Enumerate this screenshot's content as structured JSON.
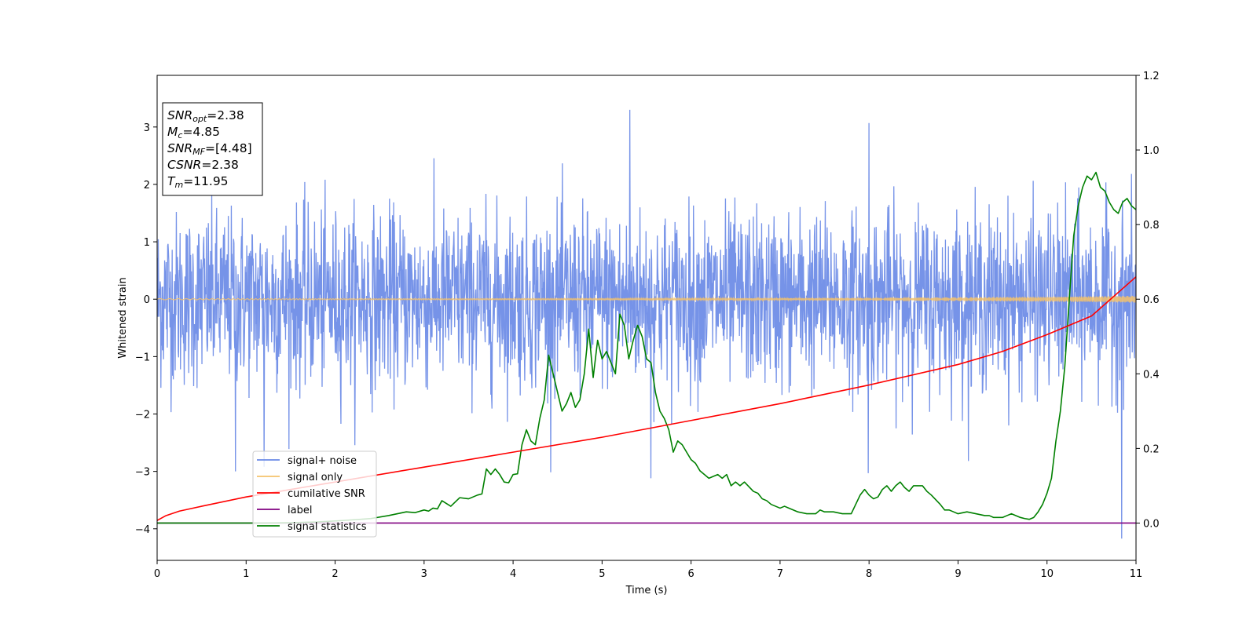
{
  "chart_data": {
    "type": "line",
    "title": "",
    "xlabel": "Time (s)",
    "ylabel": "Whitened strain",
    "y2label": "",
    "xlim": [
      0,
      11
    ],
    "ylim": [
      -4.55,
      3.9
    ],
    "y2lim": [
      -0.1,
      1.2
    ],
    "x_ticks": [
      "0",
      "1",
      "2",
      "3",
      "4",
      "5",
      "6",
      "7",
      "8",
      "9",
      "10",
      "11"
    ],
    "y_ticks": [
      {
        "value": 3,
        "label": "3"
      },
      {
        "value": 2,
        "label": "2"
      },
      {
        "value": 1,
        "label": "1"
      },
      {
        "value": 0,
        "label": "0"
      },
      {
        "value": -1,
        "label": "−1"
      },
      {
        "value": -2,
        "label": "−2"
      },
      {
        "value": -3,
        "label": "−3"
      },
      {
        "value": -4,
        "label": "−4"
      }
    ],
    "y2_ticks": [
      {
        "value": 1.2,
        "label": "1.2"
      },
      {
        "value": 1.0,
        "label": "1.0"
      },
      {
        "value": 0.8,
        "label": "0.8"
      },
      {
        "value": 0.6,
        "label": "0.6"
      },
      {
        "value": 0.4,
        "label": "0.4"
      },
      {
        "value": 0.2,
        "label": "0.2"
      },
      {
        "value": 0.0,
        "label": "0.0"
      }
    ],
    "grid": false,
    "legend_position": "lower-left",
    "series": [
      {
        "name": "signal+ noise",
        "axis": "left",
        "color": "#6a8ae6",
        "style": "noise band",
        "mean": 0,
        "std": 0.75,
        "x_range": [
          0,
          11
        ],
        "peaks": [
          [
            5.31,
            3.3
          ],
          [
            8.0,
            3.07
          ],
          [
            1.2,
            -2.92
          ],
          [
            10.84,
            -4.17
          ],
          [
            7.99,
            -3.03
          ],
          [
            5.55,
            -3.12
          ],
          [
            0.88,
            -3.0
          ]
        ]
      },
      {
        "name": "signal only",
        "axis": "left",
        "color": "#f5c26b",
        "style": "chirp",
        "x_range": [
          0,
          11
        ],
        "amplitude_start": 0.01,
        "amplitude_end": 0.06
      },
      {
        "name": "cumilative SNR",
        "axis": "right",
        "color": "#ff0000",
        "x": [
          0,
          0.1,
          0.25,
          0.5,
          1,
          1.5,
          2,
          3,
          4,
          5,
          6,
          7,
          8,
          9,
          9.5,
          10,
          10.5,
          11
        ],
        "values": [
          0.007,
          0.02,
          0.032,
          0.045,
          0.07,
          0.09,
          0.11,
          0.15,
          0.19,
          0.23,
          0.275,
          0.32,
          0.37,
          0.425,
          0.46,
          0.505,
          0.555,
          0.66
        ]
      },
      {
        "name": "label",
        "axis": "right",
        "color": "#800080",
        "x": [
          0,
          11
        ],
        "values": [
          0,
          0
        ]
      },
      {
        "name": "signal statistics",
        "axis": "right",
        "color": "#008000",
        "x": [
          0,
          0.3,
          0.6,
          0.9,
          1.2,
          1.5,
          1.8,
          2.1,
          2.4,
          2.6,
          2.7,
          2.8,
          2.9,
          3.0,
          3.05,
          3.1,
          3.15,
          3.2,
          3.3,
          3.4,
          3.5,
          3.6,
          3.65,
          3.7,
          3.75,
          3.8,
          3.85,
          3.9,
          3.95,
          4.0,
          4.05,
          4.1,
          4.15,
          4.2,
          4.25,
          4.3,
          4.35,
          4.4,
          4.45,
          4.5,
          4.55,
          4.6,
          4.65,
          4.7,
          4.75,
          4.8,
          4.85,
          4.9,
          4.95,
          5.0,
          5.05,
          5.1,
          5.15,
          5.2,
          5.25,
          5.3,
          5.35,
          5.4,
          5.45,
          5.5,
          5.55,
          5.6,
          5.65,
          5.7,
          5.75,
          5.8,
          5.85,
          5.9,
          5.95,
          6.0,
          6.05,
          6.1,
          6.15,
          6.2,
          6.3,
          6.35,
          6.4,
          6.45,
          6.5,
          6.55,
          6.6,
          6.7,
          6.75,
          6.8,
          6.85,
          6.9,
          6.95,
          7.0,
          7.05,
          7.1,
          7.2,
          7.3,
          7.4,
          7.45,
          7.5,
          7.6,
          7.7,
          7.8,
          7.85,
          7.9,
          7.95,
          8.0,
          8.05,
          8.1,
          8.15,
          8.2,
          8.25,
          8.3,
          8.35,
          8.4,
          8.45,
          8.5,
          8.55,
          8.6,
          8.65,
          8.7,
          8.8,
          8.85,
          8.9,
          8.95,
          9.0,
          9.1,
          9.2,
          9.3,
          9.35,
          9.4,
          9.45,
          9.5,
          9.55,
          9.6,
          9.65,
          9.7,
          9.75,
          9.8,
          9.85,
          9.9,
          9.95,
          10.0,
          10.05,
          10.1,
          10.15,
          10.2,
          10.25,
          10.3,
          10.35,
          10.4,
          10.45,
          10.5,
          10.55,
          10.6,
          10.65,
          10.7,
          10.75,
          10.8,
          10.85,
          10.9,
          10.95,
          11.0
        ],
        "values": [
          0.0,
          0.0,
          0.0,
          0.0,
          0.0,
          0.001,
          0.003,
          0.007,
          0.012,
          0.02,
          0.025,
          0.03,
          0.028,
          0.035,
          0.032,
          0.04,
          0.038,
          0.06,
          0.045,
          0.068,
          0.065,
          0.075,
          0.078,
          0.145,
          0.13,
          0.145,
          0.13,
          0.11,
          0.108,
          0.13,
          0.132,
          0.21,
          0.25,
          0.22,
          0.21,
          0.28,
          0.33,
          0.45,
          0.4,
          0.35,
          0.3,
          0.32,
          0.35,
          0.31,
          0.33,
          0.4,
          0.52,
          0.39,
          0.49,
          0.44,
          0.46,
          0.43,
          0.4,
          0.56,
          0.53,
          0.44,
          0.49,
          0.53,
          0.5,
          0.44,
          0.43,
          0.35,
          0.3,
          0.28,
          0.25,
          0.19,
          0.22,
          0.21,
          0.19,
          0.17,
          0.16,
          0.14,
          0.13,
          0.12,
          0.13,
          0.12,
          0.13,
          0.1,
          0.11,
          0.1,
          0.11,
          0.085,
          0.08,
          0.065,
          0.06,
          0.05,
          0.045,
          0.04,
          0.045,
          0.04,
          0.03,
          0.025,
          0.025,
          0.035,
          0.03,
          0.03,
          0.025,
          0.025,
          0.05,
          0.075,
          0.09,
          0.075,
          0.065,
          0.07,
          0.09,
          0.1,
          0.085,
          0.1,
          0.11,
          0.095,
          0.085,
          0.1,
          0.1,
          0.1,
          0.085,
          0.075,
          0.05,
          0.035,
          0.035,
          0.03,
          0.025,
          0.03,
          0.025,
          0.02,
          0.02,
          0.015,
          0.015,
          0.015,
          0.02,
          0.025,
          0.02,
          0.015,
          0.012,
          0.01,
          0.015,
          0.03,
          0.05,
          0.08,
          0.12,
          0.22,
          0.3,
          0.42,
          0.6,
          0.77,
          0.85,
          0.9,
          0.93,
          0.92,
          0.94,
          0.9,
          0.89,
          0.86,
          0.84,
          0.83,
          0.86,
          0.87,
          0.85,
          0.84
        ]
      }
    ],
    "info_box": [
      {
        "main": "SNR",
        "sub": "opt",
        "rest": "=2.38"
      },
      {
        "main": "M",
        "sub": "c",
        "rest": "=4.85"
      },
      {
        "main": "SNR",
        "sub": "MF",
        "rest": "=[4.48]"
      },
      {
        "main": "CSNR",
        "sub": "",
        "rest": "=2.38"
      },
      {
        "main": "T",
        "sub": "m",
        "rest": "=11.95"
      }
    ]
  }
}
